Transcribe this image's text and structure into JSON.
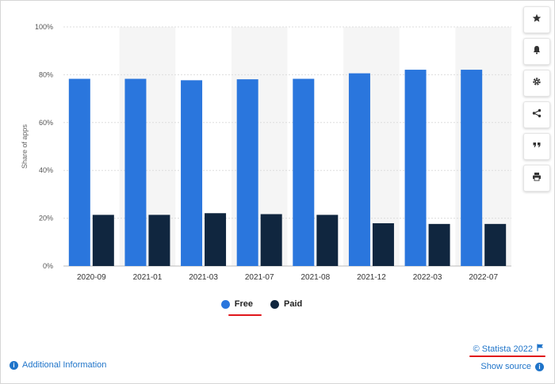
{
  "chart_data": {
    "type": "bar",
    "categories": [
      "2020-09",
      "2021-01",
      "2021-03",
      "2021-07",
      "2021-08",
      "2021-12",
      "2022-03",
      "2022-07"
    ],
    "series": [
      {
        "name": "Free",
        "values": [
          78.3,
          78.3,
          77.7,
          78.1,
          78.3,
          80.6,
          82.1,
          82.1
        ],
        "color": "#2a76dd"
      },
      {
        "name": "Paid",
        "values": [
          21.4,
          21.4,
          22.1,
          21.7,
          21.4,
          17.9,
          17.6,
          17.6
        ],
        "color": "#10263f"
      }
    ],
    "ylabel": "Share of apps",
    "ylim": [
      0,
      100
    ],
    "yticks": [
      "0%",
      "20%",
      "40%",
      "60%",
      "80%",
      "100%"
    ],
    "grid": true,
    "legend": "bottom-center"
  },
  "legend": {
    "free": "Free",
    "paid": "Paid"
  },
  "toolbar": {
    "icons": [
      "star-icon",
      "bell-icon",
      "gear-icon",
      "share-icon",
      "quote-icon",
      "print-icon"
    ]
  },
  "footer": {
    "additional_info": "Additional Information",
    "copyright": "© Statista 2022",
    "show_source": "Show source"
  },
  "colors": {
    "accent": "#1f74c9",
    "annotation": "#e0161b"
  }
}
